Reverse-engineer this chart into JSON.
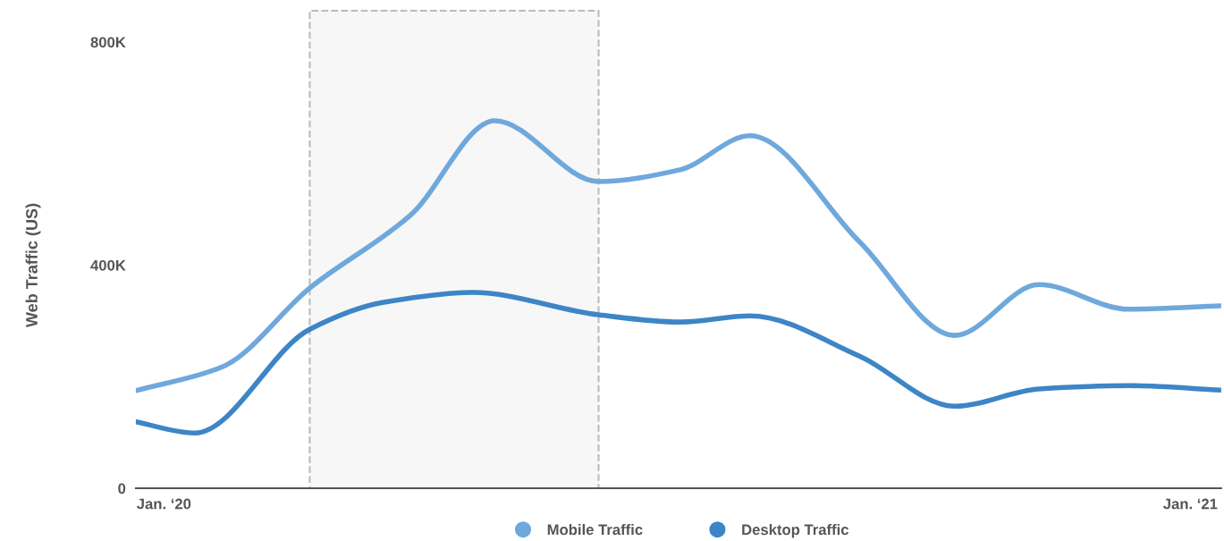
{
  "chart_data": {
    "type": "line",
    "ylabel": "Web Traffic (US)",
    "series": [
      {
        "name": "Mobile Traffic",
        "color": "#6fa8dc",
        "x": [
          "2019-12-22",
          "2020-01-22",
          "2020-02-22",
          "2020-03-29",
          "2020-04-28",
          "2020-06-04",
          "2020-07-03",
          "2020-07-28",
          "2020-09-05",
          "2020-10-09",
          "2020-11-08",
          "2020-12-10",
          "2021-01-12"
        ],
        "values": [
          175000,
          218000,
          359000,
          490000,
          659000,
          550000,
          571000,
          632000,
          442000,
          274000,
          365000,
          321000,
          327000
        ]
      },
      {
        "name": "Desktop Traffic",
        "color": "#3d85c6",
        "x": [
          "2019-12-22",
          "2020-01-12",
          "2020-02-22",
          "2020-03-19",
          "2020-04-20",
          "2020-06-04",
          "2020-07-03",
          "2020-07-28",
          "2020-09-05",
          "2020-10-09",
          "2020-11-08",
          "2020-12-10",
          "2021-01-12"
        ],
        "values": [
          119000,
          99000,
          285000,
          333000,
          351000,
          311000,
          298000,
          309000,
          237000,
          147000,
          178000,
          184000,
          176000
        ]
      }
    ],
    "xlim": [
      "2019-12-22",
      "2021-01-12"
    ],
    "xticks": [
      {
        "value": "2020-01-01",
        "label": "Jan. ‘20"
      },
      {
        "value": "2021-01-01",
        "label": "Jan. ‘21"
      }
    ],
    "ylim": [
      0,
      800000
    ],
    "yticks": [
      {
        "value": 0,
        "label": "0"
      },
      {
        "value": 400000,
        "label": "400K"
      },
      {
        "value": 800000,
        "label": "800K"
      }
    ],
    "bands": [
      {
        "axis": "x",
        "from": "2020-02-22",
        "to": "2020-06-04",
        "color": "#bbbbbb"
      }
    ],
    "grid": false,
    "legend": "bottom",
    "marker": "none",
    "line_style": "solid"
  }
}
